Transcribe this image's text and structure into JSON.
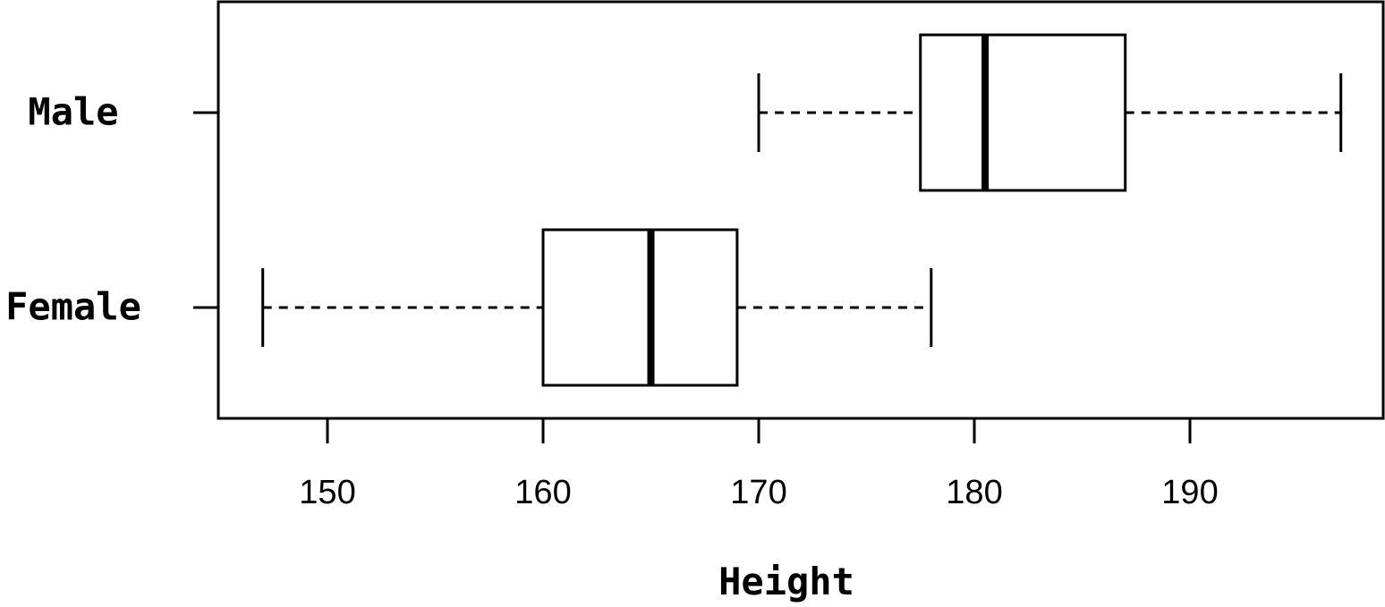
{
  "chart_data": {
    "type": "boxplot",
    "orientation": "horizontal",
    "title": "",
    "xlabel": "Height",
    "ylabel": "",
    "xlim": [
      145,
      198
    ],
    "xticks": [
      150,
      160,
      170,
      180,
      190
    ],
    "grid": false,
    "categories": [
      "Male",
      "Female"
    ],
    "series": [
      {
        "name": "Male",
        "whisker_low": 170,
        "q1": 177.5,
        "median": 180.5,
        "q3": 187,
        "whisker_high": 197
      },
      {
        "name": "Female",
        "whisker_low": 147,
        "q1": 160,
        "median": 165,
        "q3": 169,
        "whisker_high": 178
      }
    ]
  }
}
